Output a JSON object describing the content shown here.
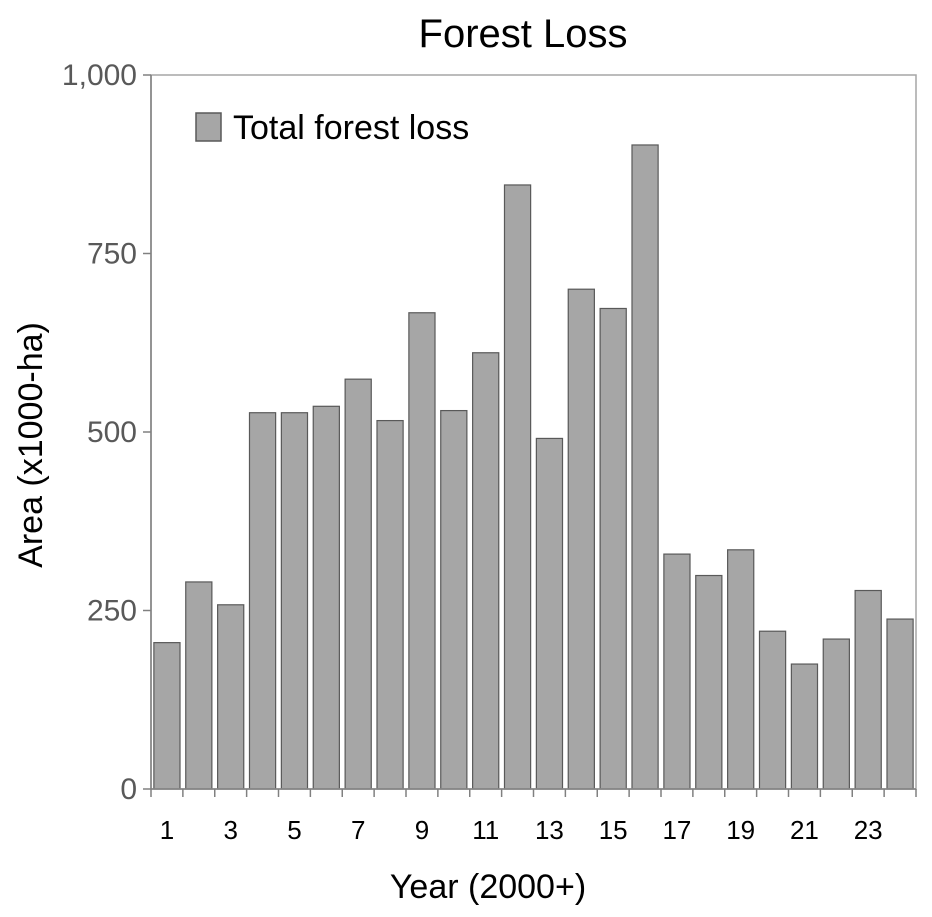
{
  "chart_data": {
    "type": "bar",
    "title": "Forest Loss",
    "xlabel": "Year (2000+)",
    "ylabel": "Area (x1000-ha)",
    "categories": [
      "1",
      "2",
      "3",
      "4",
      "5",
      "6",
      "7",
      "8",
      "9",
      "10",
      "11",
      "12",
      "13",
      "14",
      "15",
      "16",
      "17",
      "18",
      "19",
      "20",
      "21",
      "22",
      "23",
      "24"
    ],
    "tick_labels_x": [
      "1",
      "3",
      "5",
      "7",
      "9",
      "11",
      "13",
      "15",
      "17",
      "19",
      "21",
      "23"
    ],
    "ylim": [
      0,
      1000
    ],
    "yticks": [
      0,
      250,
      500,
      750,
      1000
    ],
    "ytick_labels": [
      "0",
      "250",
      "500",
      "750",
      "1,000"
    ],
    "series": [
      {
        "name": "Total forest loss",
        "color": "#a6a6a6",
        "values": [
          205,
          290,
          258,
          527,
          527,
          536,
          574,
          516,
          667,
          530,
          611,
          846,
          491,
          700,
          673,
          902,
          329,
          299,
          335,
          221,
          175,
          210,
          278,
          238
        ]
      }
    ],
    "grid": false,
    "legend": "top-left"
  }
}
